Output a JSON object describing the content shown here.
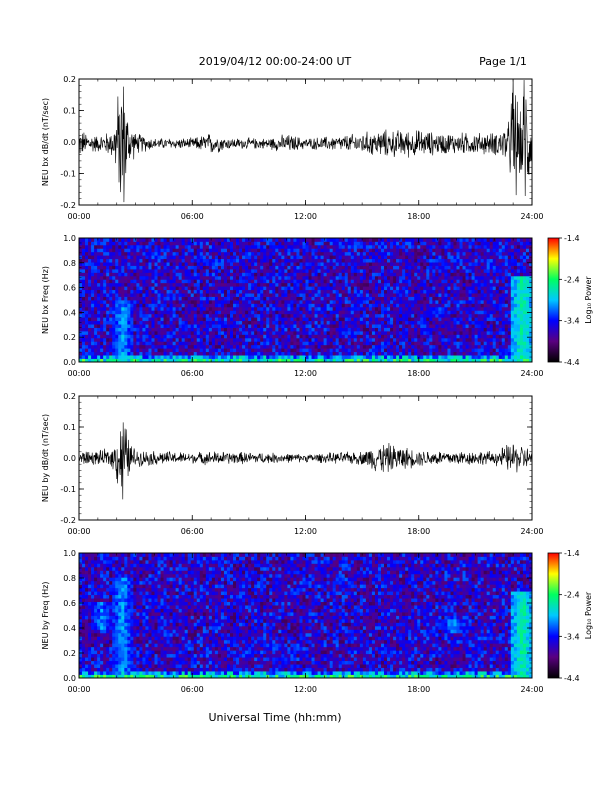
{
  "header": {
    "date_range": "2019/04/12  00:00-24:00 UT",
    "page": "Page 1/1"
  },
  "footer": {
    "xlabel": "Universal Time (hh:mm)"
  },
  "colors": {
    "trace": "#000000",
    "colormap": [
      "#000000",
      "#5a0080",
      "#0000ff",
      "#00c8ff",
      "#00ff60",
      "#ffff00",
      "#ff0000"
    ]
  },
  "chart_data": [
    {
      "type": "line",
      "title": "",
      "ylabel": "NEU bx dB/dt (nT/sec)",
      "xlabel": "",
      "x_ticks": [
        "00:00",
        "06:00",
        "12:00",
        "18:00",
        "24:00"
      ],
      "xlim": [
        0,
        24
      ],
      "ylim": [
        -0.2,
        0.2
      ],
      "y_ticks": [
        "-0.2",
        "-0.1",
        "0.0",
        "0.1",
        "0.2"
      ],
      "baseline": -0.005,
      "envelope": [
        {
          "x": 0.0,
          "amp": 0.05
        },
        {
          "x": 0.5,
          "amp": 0.04
        },
        {
          "x": 1.0,
          "amp": 0.03
        },
        {
          "x": 1.8,
          "amp": 0.05
        },
        {
          "x": 2.0,
          "amp": 0.15
        },
        {
          "x": 2.3,
          "amp": 0.3
        },
        {
          "x": 2.6,
          "amp": 0.1
        },
        {
          "x": 3.0,
          "amp": 0.04
        },
        {
          "x": 4.0,
          "amp": 0.02
        },
        {
          "x": 6.0,
          "amp": 0.02
        },
        {
          "x": 7.0,
          "amp": 0.04
        },
        {
          "x": 8.0,
          "amp": 0.02
        },
        {
          "x": 10.0,
          "amp": 0.02
        },
        {
          "x": 11.0,
          "amp": 0.035
        },
        {
          "x": 12.0,
          "amp": 0.02
        },
        {
          "x": 14.0,
          "amp": 0.03
        },
        {
          "x": 16.0,
          "amp": 0.05
        },
        {
          "x": 18.0,
          "amp": 0.05
        },
        {
          "x": 19.0,
          "amp": 0.04
        },
        {
          "x": 22.0,
          "amp": 0.04
        },
        {
          "x": 22.8,
          "amp": 0.08
        },
        {
          "x": 23.0,
          "amp": 0.3
        },
        {
          "x": 23.4,
          "amp": 0.1
        },
        {
          "x": 23.6,
          "amp": 0.3
        },
        {
          "x": 24.0,
          "amp": 0.05
        }
      ]
    },
    {
      "type": "heatmap",
      "title": "",
      "ylabel": "NEU bx Freq (Hz)",
      "x_ticks": [
        "00:00",
        "06:00",
        "12:00",
        "18:00",
        "24:00"
      ],
      "xlim": [
        0,
        24
      ],
      "ylim": [
        0.0,
        1.0
      ],
      "y_ticks": [
        "0.0",
        "0.2",
        "0.4",
        "0.6",
        "0.8",
        "1.0"
      ],
      "colorbar": {
        "label": "Log₁₀ Power",
        "range": [
          -4.4,
          -1.4
        ],
        "ticks": [
          "-1.4",
          "-2.4",
          "-3.4",
          "-4.4"
        ]
      },
      "background_log_power": -3.6,
      "features": [
        {
          "x": 2.3,
          "freq_low": 0.0,
          "freq_high": 0.5,
          "log_power": -3.0
        },
        {
          "x": 19.0,
          "freq_low": 0.35,
          "freq_high": 0.45,
          "log_power": -3.2
        },
        {
          "x": 23.5,
          "freq_low": 0.0,
          "freq_high": 0.7,
          "log_power": -2.6
        }
      ]
    },
    {
      "type": "line",
      "title": "",
      "ylabel": "NEU by dB/dt (nT/sec)",
      "xlabel": "",
      "x_ticks": [
        "00:00",
        "06:00",
        "12:00",
        "18:00",
        "24:00"
      ],
      "xlim": [
        0,
        24
      ],
      "ylim": [
        -0.2,
        0.2
      ],
      "y_ticks": [
        "-0.2",
        "-0.1",
        "0.0",
        "0.1",
        "0.2"
      ],
      "baseline": 0.0,
      "envelope": [
        {
          "x": 0.0,
          "amp": 0.03
        },
        {
          "x": 1.0,
          "amp": 0.025
        },
        {
          "x": 1.8,
          "amp": 0.04
        },
        {
          "x": 2.1,
          "amp": 0.12
        },
        {
          "x": 2.3,
          "amp": 0.2
        },
        {
          "x": 2.6,
          "amp": 0.08
        },
        {
          "x": 3.0,
          "amp": 0.03
        },
        {
          "x": 6.0,
          "amp": 0.02
        },
        {
          "x": 7.0,
          "amp": 0.025
        },
        {
          "x": 10.0,
          "amp": 0.02
        },
        {
          "x": 12.0,
          "amp": 0.015
        },
        {
          "x": 15.0,
          "amp": 0.025
        },
        {
          "x": 16.0,
          "amp": 0.06
        },
        {
          "x": 18.0,
          "amp": 0.03
        },
        {
          "x": 22.0,
          "amp": 0.025
        },
        {
          "x": 23.0,
          "amp": 0.06
        },
        {
          "x": 23.5,
          "amp": 0.05
        },
        {
          "x": 24.0,
          "amp": 0.03
        }
      ]
    },
    {
      "type": "heatmap",
      "title": "",
      "ylabel": "NEU by Freq (Hz)",
      "x_ticks": [
        "00:00",
        "06:00",
        "12:00",
        "18:00",
        "24:00"
      ],
      "xlim": [
        0,
        24
      ],
      "ylim": [
        0.0,
        1.0
      ],
      "y_ticks": [
        "0.0",
        "0.2",
        "0.4",
        "0.6",
        "0.8",
        "1.0"
      ],
      "colorbar": {
        "label": "Log₁₀ Power",
        "range": [
          -4.4,
          -1.4
        ],
        "ticks": [
          "-1.4",
          "-2.4",
          "-3.4",
          "-4.4"
        ]
      },
      "background_log_power": -3.6,
      "features": [
        {
          "x": 1.2,
          "freq_low": 0.4,
          "freq_high": 0.6,
          "log_power": -3.1
        },
        {
          "x": 2.3,
          "freq_low": 0.0,
          "freq_high": 0.8,
          "log_power": -3.0
        },
        {
          "x": 19.8,
          "freq_low": 0.35,
          "freq_high": 0.48,
          "log_power": -3.0
        },
        {
          "x": 23.5,
          "freq_low": 0.0,
          "freq_high": 0.7,
          "log_power": -2.6
        }
      ]
    }
  ]
}
